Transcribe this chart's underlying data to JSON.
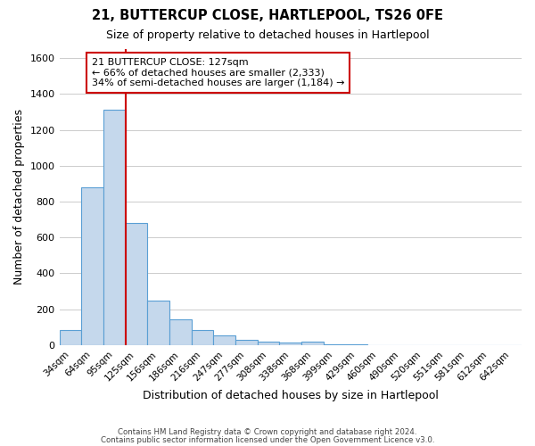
{
  "title": "21, BUTTERCUP CLOSE, HARTLEPOOL, TS26 0FE",
  "subtitle": "Size of property relative to detached houses in Hartlepool",
  "xlabel": "Distribution of detached houses by size in Hartlepool",
  "ylabel": "Number of detached properties",
  "bin_labels": [
    "34sqm",
    "64sqm",
    "95sqm",
    "125sqm",
    "156sqm",
    "186sqm",
    "216sqm",
    "247sqm",
    "277sqm",
    "308sqm",
    "338sqm",
    "368sqm",
    "399sqm",
    "429sqm",
    "460sqm",
    "490sqm",
    "520sqm",
    "551sqm",
    "581sqm",
    "612sqm",
    "642sqm"
  ],
  "bar_values": [
    85,
    880,
    1310,
    680,
    250,
    143,
    85,
    55,
    30,
    20,
    15,
    18,
    5,
    3,
    2,
    0,
    0,
    0,
    0,
    0,
    0
  ],
  "bar_color": "#c5d8ec",
  "bar_edge_color": "#5a9fd4",
  "ylim": [
    0,
    1650
  ],
  "yticks": [
    0,
    200,
    400,
    600,
    800,
    1000,
    1200,
    1400,
    1600
  ],
  "property_line_x": 3,
  "annotation_title": "21 BUTTERCUP CLOSE: 127sqm",
  "annotation_line1": "← 66% of detached houses are smaller (2,333)",
  "annotation_line2": "34% of semi-detached houses are larger (1,184) →",
  "annotation_box_color": "#ffffff",
  "annotation_box_edge": "#cc0000",
  "vline_color": "#cc0000",
  "footer1": "Contains HM Land Registry data © Crown copyright and database right 2024.",
  "footer2": "Contains public sector information licensed under the Open Government Licence v3.0.",
  "background_color": "#ffffff",
  "grid_color": "#cccccc"
}
